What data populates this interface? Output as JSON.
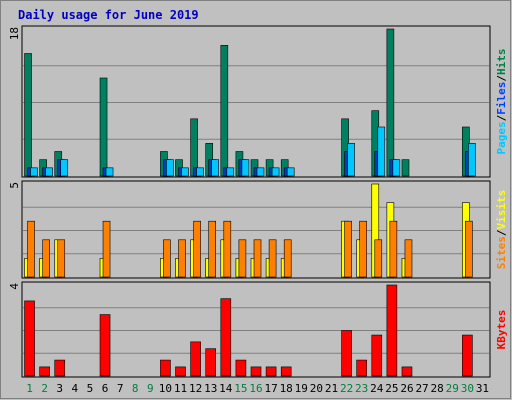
{
  "chart_data": {
    "type": "bar",
    "title": "Daily usage for June 2019",
    "days": [
      "1",
      "2",
      "3",
      "4",
      "5",
      "6",
      "7",
      "8",
      "9",
      "10",
      "11",
      "12",
      "13",
      "14",
      "15",
      "16",
      "17",
      "18",
      "19",
      "20",
      "21",
      "22",
      "23",
      "24",
      "25",
      "26",
      "27",
      "28",
      "29",
      "30",
      "31"
    ],
    "weekend_days": [
      1,
      2,
      8,
      9,
      15,
      16,
      22,
      23,
      29,
      30
    ],
    "panels": [
      {
        "name": "hits",
        "ymax_label": "18",
        "ymax": 18,
        "labels": [
          {
            "text": "Pages",
            "color": "#00c8ff"
          },
          {
            "text": "/",
            "color": "#000000"
          },
          {
            "text": "Files",
            "color": "#0040ff"
          },
          {
            "text": "/",
            "color": "#000000"
          },
          {
            "text": "Hits",
            "color": "#008040"
          }
        ],
        "series": [
          {
            "key": "hits",
            "color": "#008060",
            "values": [
              15,
              2,
              3,
              0,
              0,
              12,
              0,
              0,
              0,
              3,
              2,
              7,
              4,
              16,
              3,
              2,
              2,
              2,
              0,
              0,
              0,
              7,
              0,
              8,
              18,
              2,
              0,
              0,
              0,
              6,
              0
            ]
          },
          {
            "key": "files",
            "color": "#0040c0",
            "values": [
              1,
              1,
              2,
              0,
              0,
              1,
              0,
              0,
              0,
              2,
              1,
              1,
              2,
              1,
              2,
              1,
              1,
              1,
              0,
              0,
              0,
              3,
              0,
              3,
              2,
              0,
              0,
              0,
              0,
              3,
              0
            ]
          },
          {
            "key": "pages",
            "color": "#00c8ff",
            "values": [
              1,
              1,
              2,
              0,
              0,
              1,
              0,
              0,
              0,
              2,
              1,
              1,
              2,
              1,
              2,
              1,
              1,
              1,
              0,
              0,
              0,
              4,
              0,
              6,
              2,
              0,
              0,
              0,
              0,
              4,
              0
            ]
          }
        ]
      },
      {
        "name": "visits",
        "ymax_label": "5",
        "ymax": 5,
        "labels": [
          {
            "text": "Sites",
            "color": "#ff8000"
          },
          {
            "text": "/",
            "color": "#000000"
          },
          {
            "text": "Visits",
            "color": "#ffff00"
          }
        ],
        "series": [
          {
            "key": "visits",
            "color": "#ffff00",
            "values": [
              1,
              1,
              2,
              0,
              0,
              1,
              0,
              0,
              0,
              1,
              1,
              2,
              1,
              2,
              1,
              1,
              1,
              1,
              0,
              0,
              0,
              3,
              2,
              5,
              4,
              1,
              0,
              0,
              0,
              4,
              0
            ]
          },
          {
            "key": "sites",
            "color": "#ff8000",
            "values": [
              3,
              2,
              2,
              0,
              0,
              3,
              0,
              0,
              0,
              2,
              2,
              3,
              3,
              3,
              2,
              2,
              2,
              2,
              0,
              0,
              0,
              3,
              3,
              2,
              3,
              2,
              0,
              0,
              0,
              3,
              0
            ]
          }
        ]
      },
      {
        "name": "kbytes",
        "ymax_label": "4",
        "ymax": 4,
        "labels": [
          {
            "text": "KBytes",
            "color": "#ff0000"
          }
        ],
        "series": [
          {
            "key": "kbytes",
            "color": "#ff0000",
            "values": [
              3.3,
              0.4,
              0.7,
              0,
              0,
              2.7,
              0,
              0,
              0,
              0.7,
              0.4,
              1.5,
              1.2,
              3.4,
              0.7,
              0.4,
              0.4,
              0.4,
              0,
              0,
              0,
              2.0,
              0.7,
              1.8,
              4.0,
              0.4,
              0,
              0,
              0,
              1.8,
              0
            ]
          }
        ]
      }
    ]
  }
}
